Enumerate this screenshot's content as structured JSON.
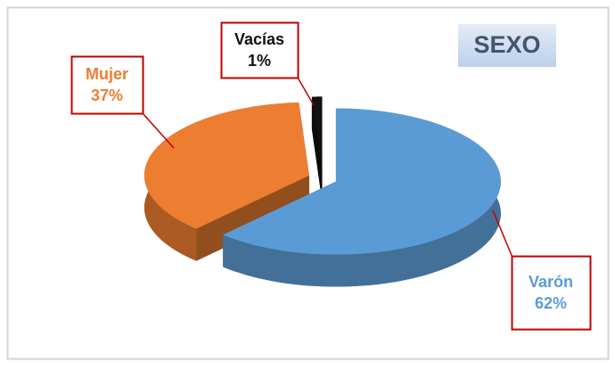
{
  "chart_data": {
    "type": "pie",
    "title": "SEXO",
    "categories": [
      "Varón",
      "Mujer",
      "Vacías"
    ],
    "values": [
      62,
      37,
      1
    ],
    "value_labels": [
      "62%",
      "37%",
      "1%"
    ],
    "colors": [
      "#5b9bd5",
      "#ed7d31",
      "#111111"
    ]
  }
}
